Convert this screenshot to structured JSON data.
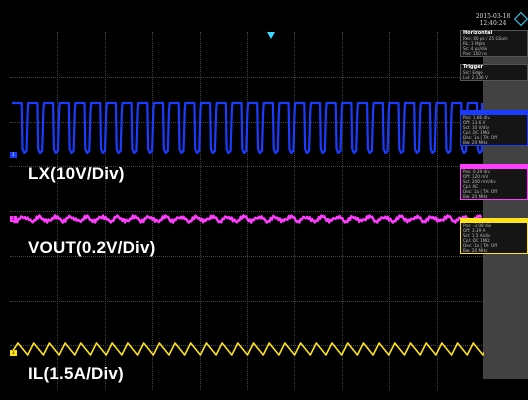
{
  "datetime": {
    "date": "2015-03-18",
    "time": "12:40:24"
  },
  "channels": [
    {
      "label": "LX(10V/Div)",
      "color": "#1a3cff"
    },
    {
      "label": "VOUT(0.2V/Div)",
      "color": "#ff3dff"
    },
    {
      "label": "IL(1.5A/Div)",
      "color": "#ffe31a"
    }
  ],
  "panel": {
    "horizontal": {
      "title": "Horizontal",
      "lines": [
        "Res: 40 ps / 25 GSa/s",
        "RL: 1 Mpts",
        "Sc: 4 μs/div",
        "Pos: 150 ns"
      ]
    },
    "trigger": {
      "title": "Trigger",
      "lines": [
        "Src: Edge",
        "Lvl: 2.136 V"
      ]
    },
    "ch1": {
      "title": "",
      "lines": [
        "Pos: 1.86 div",
        "Off: 13.6 V",
        "Scl: 10 V/div",
        "Cpl: DC 1MΩ",
        "Dec: 1a | TA: Off",
        "Bw: 20 MHz"
      ]
    },
    "ch2": {
      "title": "",
      "lines": [
        "Pos: 0.29 div",
        "Off: 120 mV",
        "Scl: 200 mV/div",
        "Cpl: AC",
        "Dec: 1a | TA: Off",
        "Bw: 20 MHz"
      ]
    },
    "ch3": {
      "title": "",
      "lines": [
        "Pos: -3.08 div",
        "Off: 3.39 A",
        "Scl: 1.5 A/div",
        "Cpl: DC 1MΩ",
        "Dec: 1a | TA: Off",
        "Bw: 20 MHz"
      ]
    }
  },
  "colors": {
    "background": "#000000",
    "grid": "#444444",
    "trigger_marker": "#3ad7ff",
    "panel_bg": "#151515"
  }
}
